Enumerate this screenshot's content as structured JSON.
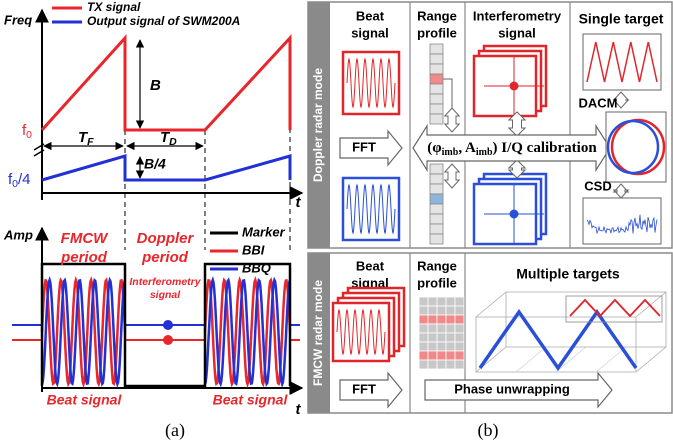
{
  "panel_a": {
    "freq_axis_label": "Freq",
    "legend": [
      {
        "label": "TX signal",
        "color": "#e8262b"
      },
      {
        "label": "Output signal of SWM200A",
        "color": "#2230d6"
      }
    ],
    "f0": {
      "base": "f",
      "sub": "0"
    },
    "f0_quarter": {
      "base": "f",
      "sub": "0",
      "tail": "/4"
    },
    "bandwidth": "B",
    "bandwidth_quarter": "B/4",
    "t_fmcw": {
      "base": "T",
      "sub": "F"
    },
    "t_doppler": {
      "base": "T",
      "sub": "D"
    },
    "time_label": "t",
    "amp_axis_label": "Amp",
    "fmcw_period": [
      "FMCW",
      "period"
    ],
    "doppler_period": [
      "Doppler",
      "period"
    ],
    "interferometry": [
      "Interferometry",
      "signal"
    ],
    "amp_legend": [
      {
        "label": "Marker",
        "color": "#000000"
      },
      {
        "label": "BBI",
        "color": "#e8262b"
      },
      {
        "label": "BBQ",
        "color": "#2230d6"
      }
    ],
    "beat_signal": [
      "Beat signal",
      "Beat signal"
    ],
    "time_label_2": "t",
    "caption": "(a)"
  },
  "panel_b": {
    "doppler_mode": {
      "mode": "Doppler radar mode",
      "beat": [
        "Beat",
        "signal"
      ],
      "range": [
        "Range",
        "profile"
      ],
      "interf": [
        "Interferometry",
        "signal"
      ],
      "single": "Single target",
      "fft": "FFT",
      "calibration": [
        "(φ",
        "imb",
        ", A",
        "imb",
        ") I/Q calibration"
      ],
      "dacm": "DACM",
      "csd": "CSD"
    },
    "fmcw_mode": {
      "mode": "FMCW radar mode",
      "beat": [
        "Beat",
        "signal"
      ],
      "range": [
        "Range",
        "profile"
      ],
      "multiple": "Multiple targets",
      "fft": "FFT",
      "unwrap": "Phase unwrapping"
    },
    "caption": "(b)"
  }
}
